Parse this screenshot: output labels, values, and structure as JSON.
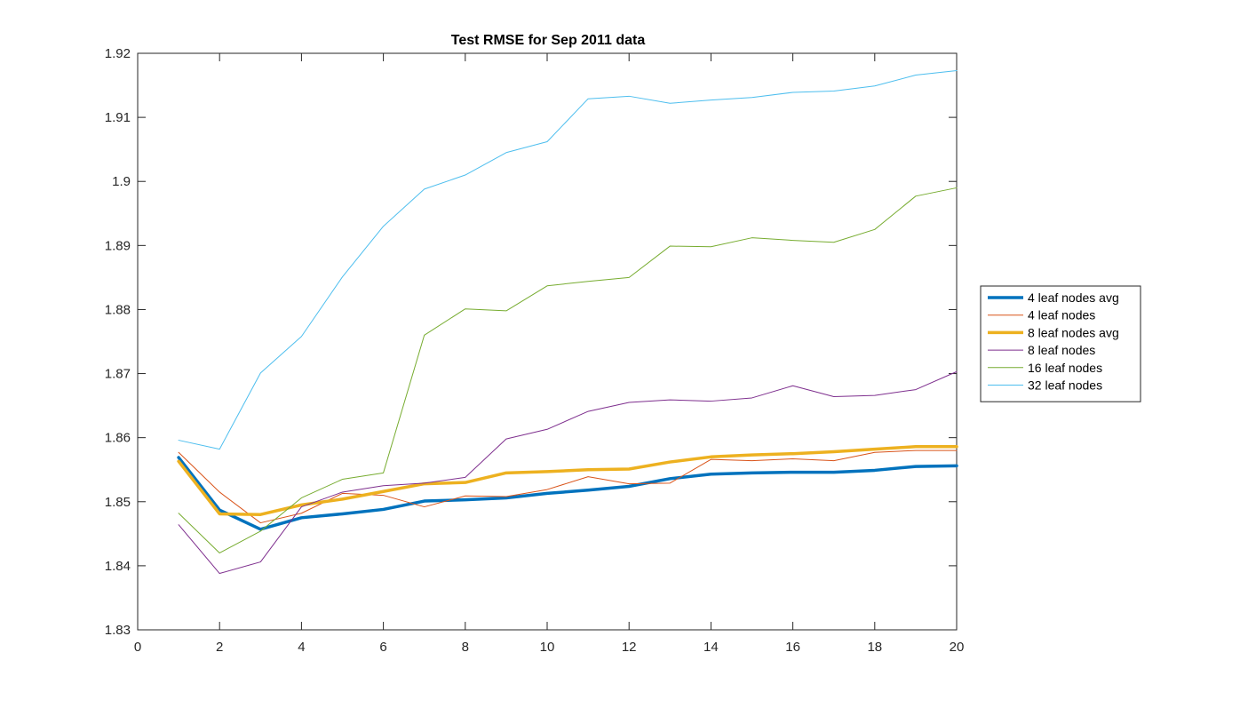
{
  "chart_data": {
    "type": "line",
    "title": "Test RMSE for Sep 2011 data",
    "xlabel": "",
    "ylabel": "",
    "xlim": [
      0,
      20
    ],
    "ylim": [
      1.83,
      1.92
    ],
    "xticks": [
      "0",
      "2",
      "4",
      "6",
      "8",
      "10",
      "12",
      "14",
      "16",
      "18",
      "20"
    ],
    "yticks": [
      "1.83",
      "1.84",
      "1.85",
      "1.86",
      "1.87",
      "1.88",
      "1.89",
      "1.9",
      "1.91",
      "1.92"
    ],
    "grid": false,
    "legend_position": "right",
    "x": [
      1,
      2,
      3,
      4,
      5,
      6,
      7,
      8,
      9,
      10,
      11,
      12,
      13,
      14,
      15,
      16,
      17,
      18,
      19,
      20
    ],
    "series": [
      {
        "name": "4 leaf nodes avg",
        "color": "#0072BD",
        "width": 3.5,
        "values": [
          1.8569,
          1.8487,
          1.8457,
          1.8475,
          1.8481,
          1.8488,
          1.8501,
          1.8503,
          1.8506,
          1.8513,
          1.8518,
          1.8524,
          1.8536,
          1.8543,
          1.8545,
          1.8546,
          1.8546,
          1.8549,
          1.8555,
          1.8556
        ]
      },
      {
        "name": "4 leaf nodes",
        "color": "#D95319",
        "width": 1,
        "values": [
          1.8577,
          1.8515,
          1.8467,
          1.8482,
          1.8513,
          1.851,
          1.8492,
          1.8509,
          1.8508,
          1.8519,
          1.8539,
          1.8528,
          1.8529,
          1.8566,
          1.8564,
          1.8567,
          1.8564,
          1.8577,
          1.858,
          1.858
        ]
      },
      {
        "name": "8 leaf nodes avg",
        "color": "#EDB120",
        "width": 3.5,
        "values": [
          1.8563,
          1.8481,
          1.848,
          1.8495,
          1.8504,
          1.8516,
          1.8528,
          1.853,
          1.8545,
          1.8547,
          1.855,
          1.8551,
          1.8562,
          1.857,
          1.8573,
          1.8575,
          1.8578,
          1.8582,
          1.8586,
          1.8586
        ]
      },
      {
        "name": "8 leaf nodes",
        "color": "#7E2F8E",
        "width": 1,
        "values": [
          1.8464,
          1.8388,
          1.8406,
          1.8492,
          1.8515,
          1.8525,
          1.8529,
          1.8538,
          1.8598,
          1.8613,
          1.8641,
          1.8655,
          1.8659,
          1.8657,
          1.8662,
          1.8681,
          1.8664,
          1.8666,
          1.8675,
          1.8703
        ]
      },
      {
        "name": "16 leaf nodes",
        "color": "#77AC30",
        "width": 1,
        "values": [
          1.8482,
          1.842,
          1.8454,
          1.8506,
          1.8535,
          1.8545,
          1.876,
          1.8801,
          1.8798,
          1.8837,
          1.8844,
          1.885,
          1.8899,
          1.8898,
          1.8912,
          1.8908,
          1.8905,
          1.8925,
          1.8977,
          1.899
        ]
      },
      {
        "name": "32 leaf nodes",
        "color": "#4DBEEE",
        "width": 1,
        "values": [
          1.8596,
          1.8582,
          1.8701,
          1.8758,
          1.8851,
          1.893,
          1.8988,
          1.901,
          1.9045,
          1.9062,
          1.9129,
          1.9133,
          1.9122,
          1.9127,
          1.9131,
          1.9139,
          1.9141,
          1.9149,
          1.9166,
          1.9173
        ]
      }
    ]
  }
}
